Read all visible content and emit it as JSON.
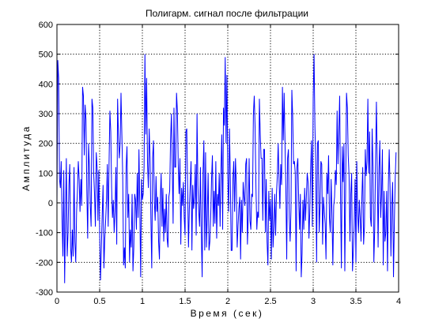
{
  "chart_data": {
    "type": "line",
    "title": "Полигарм. сигнал после фильтрации",
    "xlabel": "Время (сек)",
    "ylabel": "Амплитуда",
    "xlim": [
      0,
      4
    ],
    "ylim": [
      -300,
      600
    ],
    "xticks": [
      "0",
      "0.5",
      "1",
      "1.5",
      "2",
      "2.5",
      "3",
      "3.5",
      "4"
    ],
    "yticks": [
      "-300",
      "-200",
      "-100",
      "0",
      "100",
      "200",
      "300",
      "400",
      "500",
      "600"
    ],
    "grid": true,
    "series": [
      {
        "color": "#0000ff",
        "sample_step": 0.01,
        "x_start": 0,
        "values": [
          0,
          480,
          420,
          80,
          50,
          140,
          -60,
          -180,
          110,
          -270,
          -50,
          150,
          -180,
          -100,
          60,
          130,
          -150,
          -200,
          -90,
          -180,
          120,
          -130,
          -200,
          -30,
          40,
          140,
          80,
          -30,
          80,
          -10,
          390,
          360,
          160,
          330,
          280,
          40,
          -120,
          200,
          120,
          -10,
          -80,
          350,
          320,
          100,
          30,
          -80,
          170,
          120,
          -60,
          110,
          -100,
          -260,
          -150,
          -40,
          60,
          -220,
          -120,
          -60,
          10,
          130,
          -80,
          130,
          310,
          240,
          50,
          -50,
          10,
          -100,
          -30,
          120,
          -140,
          350,
          230,
          150,
          200,
          370,
          230,
          90,
          -210,
          -150,
          -220,
          120,
          190,
          -50,
          30,
          -200,
          -90,
          -150,
          30,
          -230,
          -150,
          30,
          10,
          -90,
          100,
          -50,
          180,
          -10,
          -250,
          80,
          10,
          30,
          120,
          500,
          230,
          420,
          140,
          50,
          250,
          150,
          -50,
          -220,
          150,
          210,
          10,
          -60,
          90,
          -30,
          20,
          -130,
          -190,
          10,
          100,
          -80,
          50,
          -130,
          -20,
          -100,
          30,
          -120,
          -150,
          20,
          40,
          210,
          300,
          130,
          -70,
          320,
          120,
          120,
          370,
          310,
          130,
          30,
          150,
          -140,
          50,
          -10,
          70,
          -50,
          -110,
          240,
          250,
          50,
          -150,
          -20,
          60,
          140,
          -160,
          60,
          -20,
          20,
          130,
          -110,
          300,
          60,
          -30,
          -80,
          120,
          -100,
          -250,
          100,
          210,
          -160,
          170,
          -150,
          -40,
          100,
          -160,
          -130,
          -50,
          80,
          160,
          -80,
          40,
          -70,
          140,
          -120,
          30,
          -10,
          100,
          -80,
          110,
          230,
          -90,
          320,
          260,
          490,
          200,
          430,
          90,
          -30,
          250,
          80,
          -160,
          -160,
          80,
          140,
          -30,
          150,
          60,
          -150,
          -80,
          -20,
          20,
          -190,
          10,
          -100,
          70,
          20,
          -10,
          130,
          150,
          -140,
          -40,
          150,
          -60,
          -90,
          30,
          20,
          300,
          360,
          250,
          50,
          -90,
          -30,
          -50,
          350,
          230,
          150,
          150,
          -60,
          180,
          180,
          -100,
          80,
          -130,
          -210,
          40,
          -60,
          10,
          -190,
          50,
          -150,
          -80,
          30,
          -110,
          30,
          90,
          200,
          80,
          -20,
          130,
          60,
          390,
          210,
          370,
          200,
          50,
          -190,
          150,
          180,
          -50,
          -130,
          -20,
          380,
          290,
          130,
          140,
          100,
          -230,
          120,
          150,
          10,
          -90,
          30,
          -250,
          -170,
          10,
          -90,
          50,
          -60,
          20,
          100,
          70,
          -120,
          -30,
          110,
          210,
          -80,
          350,
          500,
          260,
          130,
          -200,
          200,
          210,
          -100,
          -10,
          140,
          130,
          -140,
          20,
          -30,
          -70,
          -190,
          100,
          30,
          160,
          -50,
          -100,
          80,
          -40,
          -210,
          -10,
          20,
          110,
          60,
          310,
          130,
          240,
          360,
          30,
          -220,
          190,
          70,
          200,
          -230,
          50,
          370,
          320,
          160,
          90,
          -130,
          30,
          100,
          -230,
          -160,
          -70,
          80,
          -200,
          140,
          -30,
          -100,
          10,
          -50,
          -130,
          20,
          120,
          -140,
          -80,
          180,
          90,
          140,
          350,
          100,
          240,
          -50,
          -80,
          250,
          120,
          -200,
          -90,
          140,
          340,
          120,
          -150,
          110,
          210,
          -50,
          30,
          180,
          -210,
          40,
          -130,
          -100,
          40,
          -230,
          60,
          180,
          50,
          -180,
          -10,
          70,
          -250,
          -70,
          80,
          170
        ]
      }
    ]
  }
}
